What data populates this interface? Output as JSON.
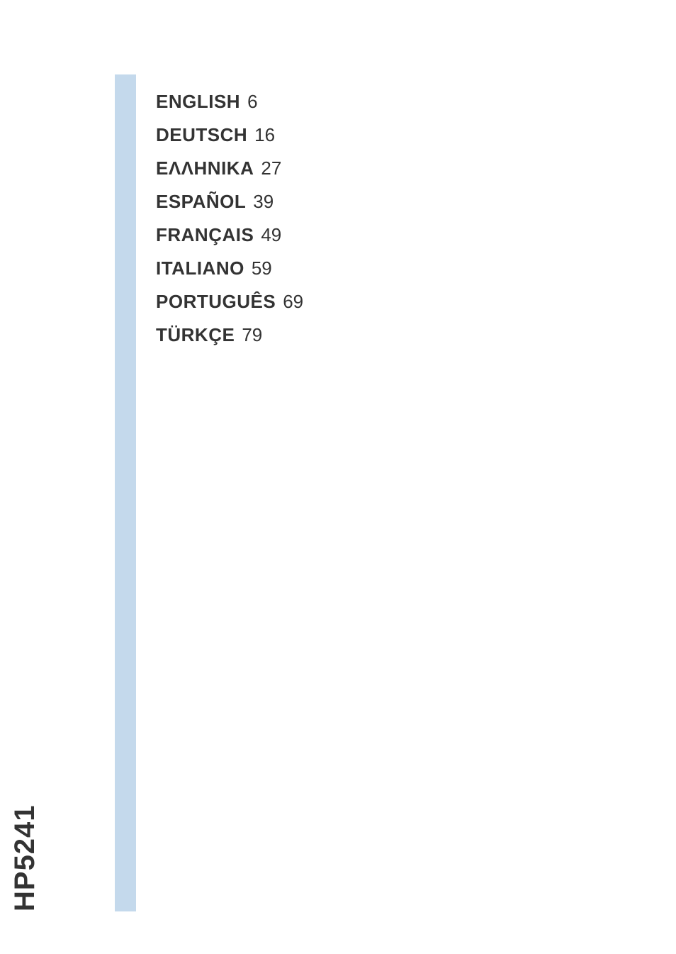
{
  "colors": {
    "background": "#ffffff",
    "band": "#c4d9ec",
    "text": "#333333"
  },
  "typography": {
    "lang_font_size": 26,
    "lang_font_weight": "bold",
    "page_font_size": 26,
    "page_font_weight": "normal",
    "model_font_size": 40,
    "model_font_weight": "bold"
  },
  "toc": {
    "items": [
      {
        "lang": "ENGLISH",
        "page": "6"
      },
      {
        "lang": "DEUTSCH",
        "page": "16"
      },
      {
        "lang": "ΕΛΛΗΝΙΚΑ",
        "page": "27"
      },
      {
        "lang": "ESPAÑOL",
        "page": "39"
      },
      {
        "lang": "FRANÇAIS",
        "page": "49"
      },
      {
        "lang": "ITALIANO",
        "page": "59"
      },
      {
        "lang": "PORTUGUÊS",
        "page": "69"
      },
      {
        "lang": "TÜRKÇE",
        "page": "79"
      }
    ]
  },
  "model_number": "HP5241"
}
